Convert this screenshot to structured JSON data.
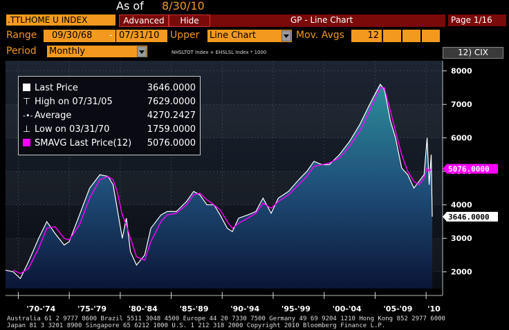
{
  "header": {
    "as_of_label": "As of",
    "as_of_date": "8/30/10",
    "ticker": ".TTLHOME U INDEX",
    "advanced_button": "Advanced",
    "hide_button": "Hide",
    "screen_title": "GP - Line Chart",
    "page_indicator": "Page 1/16"
  },
  "controls": {
    "range_label": "Range",
    "range_start": "09/30/68",
    "range_dash": "-",
    "range_end": "07/31/10",
    "upper_label": "Upper",
    "upper_value": "Line Chart",
    "mov_avgs_label": "Mov. Avgs",
    "mov_avgs_value": "12",
    "period_label": "Period",
    "period_value": "Monthly",
    "formula": "NHSLTOT Index + EHSLSL Index * 1000",
    "cix_button": "12) CIX"
  },
  "legend": {
    "rows": [
      {
        "icon": "square",
        "label": "Last Price",
        "value": "3646.0000"
      },
      {
        "icon": "high",
        "label": "High on 07/31/05",
        "value": "7629.0000"
      },
      {
        "icon": "average",
        "label": "Average",
        "value": "4270.2427"
      },
      {
        "icon": "low",
        "label": "Low on 03/31/70",
        "value": "1759.0000"
      },
      {
        "icon": "magenta-square",
        "label": "SMAVG Last Price(12)",
        "value": "5076.0000"
      }
    ]
  },
  "colors": {
    "orange": "#f39a1e",
    "magenta": "#ff00ff",
    "line": "#ffffff"
  },
  "footer": {
    "line1": "Australia 61 2 9777 8600 Brazil 5511 3048 4500 Europe 44 20 7330 7500 Germany 49 69 9204 1210 Hong Kong 852 2977 6000",
    "line2": "Japan 81 3 3201 8900          Singapore 65 6212 1000          U.S. 1 212 318 2000          Copyright 2010 Bloomberg Finance L.P."
  },
  "chart_data": {
    "type": "area",
    "ylim": [
      1500,
      8200
    ],
    "y_ticks": [
      2000,
      3000,
      4000,
      5000,
      6000,
      7000,
      8000
    ],
    "y_tick_labels": [
      "2000",
      "3000",
      "4000",
      "5000",
      "6000",
      "7000",
      "8000"
    ],
    "x_range": [
      1968.75,
      2010.6
    ],
    "x_tick_labels": [
      "'70-'74",
      "'75-'79",
      "'80-'84",
      "'85-'89",
      "'90-'94",
      "'95-'99",
      "'00-'04",
      "'05-'09",
      "'10"
    ],
    "x_tick_starts": [
      1970,
      1975,
      1980,
      1985,
      1990,
      1995,
      2000,
      2005,
      2010
    ],
    "last_price_label": "3646.0000",
    "last_price_value": 3646,
    "smavg_label": "5076.0000",
    "smavg_value": 5076,
    "series": [
      {
        "name": "Last Price",
        "x": [
          1968.75,
          1969.5,
          1970.2,
          1971.0,
          1972.0,
          1972.8,
          1973.6,
          1974.5,
          1975.0,
          1976.0,
          1977.0,
          1978.0,
          1978.8,
          1979.3,
          1979.7,
          1980.2,
          1980.6,
          1981.0,
          1981.6,
          1982.4,
          1983.0,
          1984.0,
          1984.6,
          1985.5,
          1986.5,
          1987.2,
          1987.8,
          1988.5,
          1989.2,
          1989.8,
          1990.5,
          1991.0,
          1991.6,
          1992.5,
          1993.3,
          1994.0,
          1994.8,
          1995.5,
          1996.5,
          1997.5,
          1998.3,
          1999.0,
          1999.8,
          2000.5,
          2001.5,
          2002.5,
          2003.5,
          2004.3,
          2004.8,
          2005.5,
          2005.9,
          2006.5,
          2007.0,
          2007.6,
          2008.2,
          2008.8,
          2009.3,
          2009.8,
          2010.1,
          2010.3,
          2010.5,
          2010.6
        ],
        "y": [
          2050,
          2000,
          1800,
          2300,
          3000,
          3500,
          3150,
          2800,
          2900,
          3700,
          4500,
          4900,
          4850,
          4600,
          3900,
          3000,
          3600,
          2600,
          2200,
          2500,
          3300,
          3700,
          3800,
          3800,
          4100,
          4400,
          4300,
          4000,
          4000,
          3700,
          3300,
          3200,
          3600,
          3700,
          3800,
          4200,
          3750,
          4200,
          4400,
          4750,
          5000,
          5300,
          5200,
          5200,
          5500,
          5900,
          6400,
          6900,
          7200,
          7600,
          7450,
          6500,
          6000,
          5100,
          4900,
          4500,
          4700,
          4900,
          6000,
          4600,
          5500,
          3646
        ]
      },
      {
        "name": "SMAVG Last Price(12)",
        "x": [
          1969.5,
          1970.2,
          1971.0,
          1972.0,
          1972.8,
          1973.6,
          1974.5,
          1975.0,
          1976.0,
          1977.0,
          1978.0,
          1978.8,
          1979.3,
          1979.7,
          1980.2,
          1980.6,
          1981.0,
          1981.6,
          1982.4,
          1983.0,
          1984.0,
          1984.6,
          1985.5,
          1986.5,
          1987.2,
          1987.8,
          1988.5,
          1989.2,
          1989.8,
          1990.5,
          1991.0,
          1991.6,
          1992.5,
          1993.3,
          1994.0,
          1994.8,
          1995.5,
          1996.5,
          1997.5,
          1998.3,
          1999.0,
          1999.8,
          2000.5,
          2001.5,
          2002.5,
          2003.5,
          2004.3,
          2004.8,
          2005.5,
          2005.9,
          2006.5,
          2007.0,
          2007.6,
          2008.2,
          2008.8,
          2009.3,
          2009.8,
          2010.1,
          2010.3,
          2010.5
        ],
        "y": [
          2050,
          1950,
          2100,
          2700,
          3300,
          3350,
          3000,
          2950,
          3400,
          4200,
          4750,
          4850,
          4750,
          4400,
          3700,
          3400,
          3000,
          2450,
          2350,
          2900,
          3500,
          3700,
          3750,
          4000,
          4300,
          4350,
          4150,
          4000,
          3850,
          3500,
          3300,
          3450,
          3600,
          3750,
          4050,
          3900,
          4100,
          4300,
          4600,
          4850,
          5150,
          5200,
          5250,
          5400,
          5750,
          6200,
          6700,
          7050,
          7500,
          7500,
          6800,
          6200,
          5500,
          5000,
          4700,
          4600,
          4800,
          5100,
          5000,
          5076
        ]
      }
    ]
  }
}
